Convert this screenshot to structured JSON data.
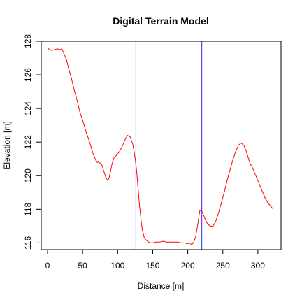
{
  "chart_data": {
    "type": "line",
    "title": "Digital Terrain Model",
    "xlabel": "Distance [m]",
    "ylabel": "Elevation [m]",
    "xlim": [
      -9,
      333
    ],
    "ylim": [
      115.6,
      128.0
    ],
    "x_ticks": [
      0,
      50,
      100,
      150,
      200,
      250,
      300
    ],
    "y_ticks": [
      116,
      118,
      120,
      122,
      124,
      126,
      128
    ],
    "grid": false,
    "legend": "none",
    "series": [
      {
        "color": "#ff0000",
        "x": [
          0,
          3,
          6,
          10,
          14,
          18,
          20,
          22,
          24,
          27,
          30,
          34,
          38,
          42,
          46,
          50,
          55,
          60,
          65,
          70,
          73,
          75,
          78,
          80,
          83,
          86,
          88,
          90,
          92,
          95,
          98,
          102,
          106,
          110,
          114,
          118,
          122,
          125,
          127,
          129,
          131,
          133,
          135,
          138,
          141,
          144,
          147,
          150,
          155,
          160,
          165,
          170,
          175,
          180,
          185,
          190,
          195,
          200,
          203,
          205,
          207,
          209,
          211,
          213,
          215,
          217,
          219,
          221,
          223,
          225,
          228,
          232,
          236,
          240,
          244,
          248,
          252,
          256,
          260,
          264,
          268,
          272,
          276,
          280,
          283,
          286,
          289,
          292,
          295,
          298,
          302,
          306,
          310,
          314,
          318,
          322
        ],
        "y": [
          127.6,
          127.5,
          127.45,
          127.5,
          127.55,
          127.5,
          127.55,
          127.4,
          127.2,
          126.9,
          126.4,
          125.8,
          125.1,
          124.5,
          123.8,
          123.3,
          122.6,
          122.0,
          121.3,
          120.8,
          120.8,
          120.75,
          120.6,
          120.3,
          119.9,
          119.7,
          119.9,
          120.3,
          120.7,
          121.1,
          121.2,
          121.4,
          121.7,
          122.1,
          122.4,
          122.3,
          121.8,
          121.0,
          120.3,
          119.3,
          118.3,
          117.5,
          116.8,
          116.3,
          116.15,
          116.05,
          116.0,
          116.0,
          116.05,
          116.05,
          116.1,
          116.05,
          116.05,
          116.05,
          116.05,
          116.0,
          116.0,
          115.95,
          116.0,
          115.9,
          115.95,
          116.1,
          116.3,
          116.8,
          117.3,
          117.9,
          117.95,
          117.8,
          117.6,
          117.4,
          117.15,
          117.0,
          117.0,
          117.3,
          117.8,
          118.4,
          119.0,
          119.7,
          120.3,
          120.9,
          121.4,
          121.8,
          121.95,
          121.8,
          121.5,
          121.1,
          120.7,
          120.5,
          120.2,
          119.9,
          119.5,
          119.1,
          118.7,
          118.4,
          118.2,
          118.0
        ]
      }
    ],
    "vlines": [
      {
        "x": 126,
        "color": "#2b2bff"
      },
      {
        "x": 220,
        "color": "#2b2bff"
      }
    ]
  }
}
